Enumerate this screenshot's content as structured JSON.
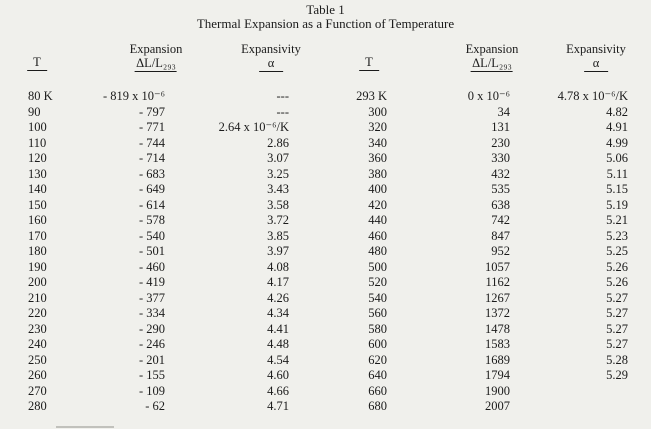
{
  "document": {
    "table_label": "Table 1",
    "title": "Thermal Expansion as a Function of Temperature"
  },
  "table": {
    "headers": {
      "t": "T",
      "expansion_top": "Expansion",
      "expansion_bottom": "ΔL/L₂₉₃",
      "expansivity_top": "Expansivity",
      "expansivity_bottom": "α"
    },
    "left_rows": [
      [
        "80 K",
        "- 819 x 10⁻⁶",
        "---"
      ],
      [
        "90",
        "- 797",
        "---"
      ],
      [
        "100",
        "- 771",
        "2.64 x 10⁻⁶/K"
      ],
      [
        "110",
        "- 744",
        "2.86"
      ],
      [
        "120",
        "- 714",
        "3.07"
      ],
      [
        "130",
        "- 683",
        "3.25"
      ],
      [
        "140",
        "- 649",
        "3.43"
      ],
      [
        "150",
        "- 614",
        "3.58"
      ],
      [
        "160",
        "- 578",
        "3.72"
      ],
      [
        "170",
        "- 540",
        "3.85"
      ],
      [
        "180",
        "- 501",
        "3.97"
      ],
      [
        "190",
        "- 460",
        "4.08"
      ],
      [
        "200",
        "- 419",
        "4.17"
      ],
      [
        "210",
        "- 377",
        "4.26"
      ],
      [
        "220",
        "- 334",
        "4.34"
      ],
      [
        "230",
        "- 290",
        "4.41"
      ],
      [
        "240",
        "- 246",
        "4.48"
      ],
      [
        "250",
        "- 201",
        "4.54"
      ],
      [
        "260",
        "- 155",
        "4.60"
      ],
      [
        "270",
        "- 109",
        "4.66"
      ],
      [
        "280",
        "- 62",
        "4.71"
      ]
    ],
    "right_rows": [
      [
        "293 K",
        "0 x 10⁻⁶",
        "4.78 x 10⁻⁶/K"
      ],
      [
        "300",
        "34",
        "4.82"
      ],
      [
        "320",
        "131",
        "4.91"
      ],
      [
        "340",
        "230",
        "4.99"
      ],
      [
        "360",
        "330",
        "5.06"
      ],
      [
        "380",
        "432",
        "5.11"
      ],
      [
        "400",
        "535",
        "5.15"
      ],
      [
        "420",
        "638",
        "5.19"
      ],
      [
        "440",
        "742",
        "5.21"
      ],
      [
        "460",
        "847",
        "5.23"
      ],
      [
        "480",
        "952",
        "5.25"
      ],
      [
        "500",
        "1057",
        "5.26"
      ],
      [
        "520",
        "1162",
        "5.26"
      ],
      [
        "540",
        "1267",
        "5.27"
      ],
      [
        "560",
        "1372",
        "5.27"
      ],
      [
        "580",
        "1478",
        "5.27"
      ],
      [
        "600",
        "1583",
        "5.27"
      ],
      [
        "620",
        "1689",
        "5.28"
      ],
      [
        "640",
        "1794",
        "5.29"
      ],
      [
        "660",
        "1900",
        ""
      ],
      [
        "680",
        "2007",
        ""
      ]
    ]
  },
  "colors": {
    "background": "#f0f0ec",
    "text": "#1b1b1b"
  }
}
